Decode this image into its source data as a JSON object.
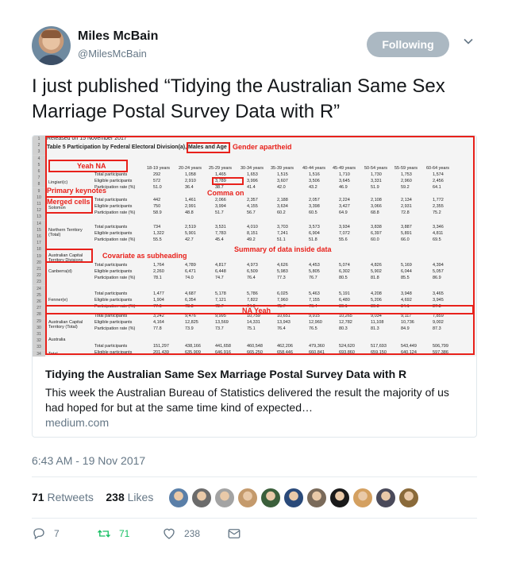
{
  "user": {
    "name": "Miles McBain",
    "handle": "@MilesMcBain",
    "follow_label": "Following"
  },
  "tweet": {
    "text": "I just published “Tidying the Australian Same Sex Marriage Postal Survey Data with R”"
  },
  "card": {
    "title": "Tidying the Australian Same Sex Marriage Postal Survey Data with R",
    "description": "This week the Australian Bureau of Statistics delivered the result the majority of us had hoped for but at the same time kind of expected…",
    "domain": "medium.com",
    "image": {
      "released": "Released on 15 November 2017",
      "table_title": "Table 5 Participation by Federal Electoral Division(a),",
      "males_age": "Males and Age",
      "annotations": {
        "gender": "Gender apartheid",
        "yeah_na": "Yeah NA",
        "primary_keynotes": "Primary keynotes",
        "comma_on": "Comma on",
        "merged_cells": "Merged cells",
        "summary": "Summary of data inside data",
        "covariate": "Covariate as subheading",
        "na_yeah": "NA Yeah"
      },
      "age_headers": [
        "18-19 years",
        "20-24 years",
        "25-29 years",
        "30-34 years",
        "35-39 years",
        "40-44 years",
        "45-49 years",
        "50-54 years",
        "55-59 years",
        "60-64 years"
      ],
      "row_labels": [
        "Total participants",
        "Eligible participants",
        "Participation rate (%)"
      ],
      "regions": [
        "Lingiari(c)",
        "Solomon",
        "Northern Territory (Total)",
        "Australian Capital Territory Divisions",
        "Canberra(d)",
        "Fenner(e)",
        "Australian Capital Territory (Total)",
        "Australia",
        "Total"
      ],
      "rows": [
        [
          "292",
          "1,058",
          "1,465",
          "1,653",
          "1,515",
          "1,516",
          "1,710",
          "1,730",
          "1,753",
          "1,574"
        ],
        [
          "572",
          "2,910",
          "3,789",
          "3,996",
          "3,607",
          "3,506",
          "3,645",
          "3,331",
          "2,960",
          "2,456"
        ],
        [
          "51.0",
          "36.4",
          "38.7",
          "41.4",
          "42.0",
          "43.2",
          "46.9",
          "51.9",
          "59.2",
          "64.1"
        ],
        [
          "442",
          "1,461",
          "2,066",
          "2,357",
          "2,188",
          "2,057",
          "2,224",
          "2,108",
          "2,134",
          "1,772"
        ],
        [
          "750",
          "2,991",
          "3,994",
          "4,155",
          "3,634",
          "3,398",
          "3,427",
          "3,066",
          "2,931",
          "2,355"
        ],
        [
          "58.9",
          "48.8",
          "51.7",
          "56.7",
          "60.2",
          "60.5",
          "64.9",
          "68.8",
          "72.8",
          "75.2"
        ],
        [
          "734",
          "2,519",
          "3,531",
          "4,010",
          "3,703",
          "3,573",
          "3,934",
          "3,838",
          "3,887",
          "3,346"
        ],
        [
          "1,322",
          "5,901",
          "7,783",
          "8,151",
          "7,241",
          "6,904",
          "7,072",
          "6,397",
          "5,891",
          "4,811"
        ],
        [
          "55.5",
          "42.7",
          "45.4",
          "49.2",
          "51.1",
          "51.8",
          "55.6",
          "60.0",
          "66.0",
          "69.5"
        ],
        [
          "1,764",
          "4,789",
          "4,817",
          "4,973",
          "4,626",
          "4,453",
          "5,074",
          "4,826",
          "5,169",
          "4,394"
        ],
        [
          "2,260",
          "6,471",
          "6,448",
          "6,509",
          "5,983",
          "5,805",
          "6,302",
          "5,902",
          "6,044",
          "5,057"
        ],
        [
          "78.1",
          "74.0",
          "74.7",
          "76.4",
          "77.3",
          "76.7",
          "80.5",
          "81.8",
          "85.5",
          "86.9"
        ],
        [
          "1,477",
          "4,687",
          "5,178",
          "5,786",
          "6,025",
          "5,463",
          "5,191",
          "4,208",
          "3,948",
          "3,465"
        ],
        [
          "1,904",
          "6,354",
          "7,121",
          "7,822",
          "7,960",
          "7,155",
          "6,480",
          "5,206",
          "4,692",
          "3,945"
        ],
        [
          "77.6",
          "73.8",
          "72.7",
          "74.0",
          "75.7",
          "76.4",
          "80.1",
          "80.8",
          "84.1",
          "87.8"
        ],
        [
          "3,242",
          "9,476",
          "9,995",
          "10,759",
          "10,651",
          "9,915",
          "10,265",
          "9,034",
          "9,117",
          "7,859"
        ],
        [
          "4,164",
          "12,825",
          "13,569",
          "14,331",
          "13,943",
          "12,960",
          "12,782",
          "11,108",
          "10,736",
          "9,002"
        ],
        [
          "77.8",
          "73.9",
          "73.7",
          "75.1",
          "76.4",
          "76.5",
          "80.3",
          "81.3",
          "84.9",
          "87.3"
        ],
        [
          "151,297",
          "438,166",
          "441,658",
          "460,548",
          "462,206",
          "479,360",
          "524,620",
          "517,693",
          "543,449",
          "506,799"
        ],
        [
          "201,439",
          "635,909",
          "646,916",
          "665,250",
          "658,446",
          "660,841",
          "693,860",
          "659,150",
          "640,124",
          "597,386"
        ]
      ]
    }
  },
  "timestamp": "6:43 AM - 19 Nov 2017",
  "stats": {
    "retweets_count": "71",
    "retweets_label": "Retweets",
    "likes_count": "238",
    "likes_label": "Likes"
  },
  "likers": [
    {
      "color": "#5a7fa8"
    },
    {
      "color": "#6b6b6b"
    },
    {
      "color": "#a3a3a3"
    },
    {
      "color": "#c49a6c"
    },
    {
      "color": "#3b5f3b"
    },
    {
      "color": "#2a4a7a"
    },
    {
      "color": "#7a6a5a"
    },
    {
      "color": "#1a1a1a"
    },
    {
      "color": "#d4a060"
    },
    {
      "color": "#4a4a5a"
    },
    {
      "color": "#8a6a3a"
    }
  ],
  "actions": {
    "replies": "7",
    "retweets": "71",
    "likes": "238"
  },
  "colors": {
    "retweet_green": "#17bf63",
    "muted": "#657786",
    "annotation_red": "#e8211b"
  }
}
